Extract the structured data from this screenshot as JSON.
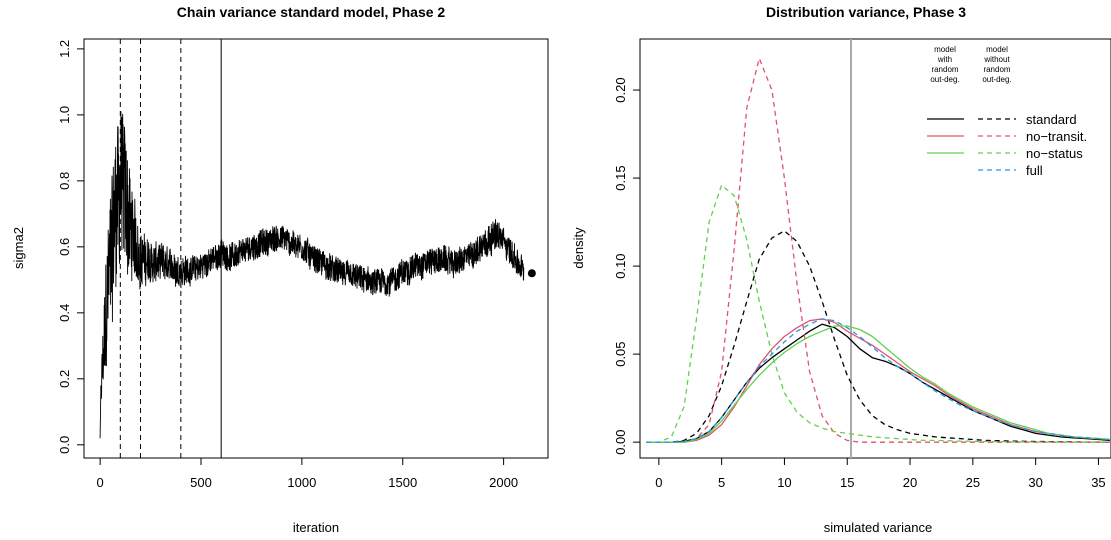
{
  "chart_data": [
    {
      "type": "line",
      "title": "Chain variance standard model, Phase 2",
      "xlabel": "iteration",
      "ylabel": "sigma2",
      "xlim": [
        -80,
        2220
      ],
      "ylim": [
        -0.04,
        1.23
      ],
      "xticks": [
        0,
        500,
        1000,
        1500,
        2000
      ],
      "yticks": [
        0.0,
        0.2,
        0.4,
        0.6,
        0.8,
        1.0,
        1.2
      ],
      "xtick_labels": [
        "0",
        "500",
        "1000",
        "1500",
        "2000"
      ],
      "ytick_labels": [
        "0.0",
        "0.2",
        "0.4",
        "0.6",
        "0.8",
        "1.0",
        "1.2"
      ],
      "vlines_dashed": [
        100,
        200,
        400
      ],
      "vlines_solid": [
        600
      ],
      "trace_anchors": {
        "x": [
          0,
          25,
          50,
          75,
          100,
          125,
          150,
          175,
          200,
          250,
          300,
          350,
          400,
          450,
          500,
          550,
          600,
          650,
          700,
          750,
          800,
          850,
          900,
          950,
          1000,
          1050,
          1100,
          1150,
          1200,
          1250,
          1300,
          1350,
          1400,
          1450,
          1500,
          1550,
          1600,
          1650,
          1700,
          1750,
          1800,
          1850,
          1900,
          1950,
          2000,
          2050,
          2100
        ],
        "center": [
          0.12,
          0.35,
          0.55,
          0.72,
          0.8,
          0.75,
          0.66,
          0.6,
          0.57,
          0.55,
          0.55,
          0.54,
          0.53,
          0.53,
          0.54,
          0.56,
          0.58,
          0.57,
          0.58,
          0.6,
          0.61,
          0.62,
          0.63,
          0.61,
          0.6,
          0.57,
          0.55,
          0.53,
          0.52,
          0.51,
          0.5,
          0.49,
          0.49,
          0.5,
          0.52,
          0.54,
          0.55,
          0.56,
          0.56,
          0.55,
          0.56,
          0.58,
          0.61,
          0.64,
          0.62,
          0.57,
          0.52
        ],
        "spread": [
          0.06,
          0.2,
          0.28,
          0.3,
          0.3,
          0.27,
          0.2,
          0.14,
          0.1,
          0.08,
          0.07,
          0.06,
          0.06,
          0.05,
          0.05,
          0.05,
          0.05,
          0.05,
          0.05,
          0.05,
          0.05,
          0.05,
          0.05,
          0.05,
          0.05,
          0.05,
          0.05,
          0.05,
          0.05,
          0.05,
          0.05,
          0.05,
          0.05,
          0.05,
          0.05,
          0.05,
          0.05,
          0.05,
          0.05,
          0.05,
          0.05,
          0.05,
          0.06,
          0.06,
          0.05,
          0.05,
          0.05
        ]
      },
      "final_point": {
        "x": 2140,
        "y": 0.52
      }
    },
    {
      "type": "line",
      "title": "Distribution variance, Phase 3",
      "xlabel": "simulated variance",
      "ylabel": "density",
      "xlim": [
        -1.5,
        36
      ],
      "ylim": [
        -0.009,
        0.229
      ],
      "xticks": [
        0,
        5,
        10,
        15,
        20,
        25,
        30,
        35
      ],
      "yticks": [
        0.0,
        0.05,
        0.1,
        0.15,
        0.2
      ],
      "xtick_labels": [
        "0",
        "5",
        "10",
        "15",
        "20",
        "25",
        "30",
        "35"
      ],
      "ytick_labels": [
        "0.00",
        "0.05",
        "0.10",
        "0.15",
        "0.20"
      ],
      "reference_line": {
        "x": 15.3,
        "color": "#aaaaaa"
      },
      "legend": {
        "position": "top-right",
        "col1_header": [
          "model",
          "with",
          "random",
          "out-deg."
        ],
        "col2_header": [
          "model",
          "without",
          "random",
          "out-deg."
        ],
        "entries": [
          "standard",
          "no−transit.",
          "no−status",
          "full"
        ]
      },
      "x": [
        -1,
        0,
        1,
        2,
        3,
        4,
        5,
        6,
        7,
        8,
        9,
        10,
        11,
        12,
        13,
        14,
        15,
        16,
        17,
        18,
        19,
        20,
        21,
        22,
        23,
        24,
        25,
        26,
        27,
        28,
        29,
        30,
        31,
        32,
        33,
        34,
        35,
        36
      ],
      "series": [
        {
          "name": "standard",
          "style": "solid",
          "color": "#000000",
          "values": [
            0,
            0,
            0,
            0.0005,
            0.002,
            0.006,
            0.014,
            0.024,
            0.034,
            0.042,
            0.048,
            0.053,
            0.058,
            0.063,
            0.067,
            0.065,
            0.06,
            0.053,
            0.048,
            0.046,
            0.043,
            0.039,
            0.034,
            0.03,
            0.026,
            0.022,
            0.018,
            0.015,
            0.012,
            0.009,
            0.007,
            0.005,
            0.004,
            0.003,
            0.0025,
            0.002,
            0.0015,
            0.001
          ]
        },
        {
          "name": "standard",
          "style": "dashed",
          "color": "#000000",
          "values": [
            0,
            0,
            0,
            0.001,
            0.005,
            0.015,
            0.032,
            0.055,
            0.08,
            0.104,
            0.116,
            0.12,
            0.114,
            0.1,
            0.08,
            0.058,
            0.038,
            0.024,
            0.015,
            0.01,
            0.007,
            0.005,
            0.004,
            0.003,
            0.0025,
            0.002,
            0.0015,
            0.001,
            0.0008,
            0.0006,
            0.0005,
            0.0004,
            0.0003,
            0.0002,
            0.0002,
            0.0001,
            0.0001,
            0
          ]
        },
        {
          "name": "no−transit.",
          "style": "solid",
          "color": "#df536b",
          "values": [
            0,
            0,
            0,
            0,
            0.001,
            0.004,
            0.01,
            0.02,
            0.032,
            0.044,
            0.053,
            0.06,
            0.065,
            0.069,
            0.07,
            0.068,
            0.063,
            0.059,
            0.055,
            0.05,
            0.045,
            0.04,
            0.036,
            0.032,
            0.027,
            0.023,
            0.019,
            0.016,
            0.013,
            0.01,
            0.008,
            0.006,
            0.005,
            0.004,
            0.003,
            0.0025,
            0.002,
            0.0015
          ]
        },
        {
          "name": "no−transit.",
          "style": "dashed",
          "color": "#df536b",
          "values": [
            0,
            0,
            0,
            0,
            0.002,
            0.01,
            0.04,
            0.11,
            0.19,
            0.218,
            0.2,
            0.15,
            0.09,
            0.04,
            0.015,
            0.005,
            0.001,
            0,
            0,
            0,
            0,
            0,
            0,
            0,
            0,
            0,
            0,
            0,
            0,
            0,
            0,
            0,
            0,
            0,
            0,
            0,
            0,
            0
          ]
        },
        {
          "name": "no−status",
          "style": "solid",
          "color": "#61d04f",
          "values": [
            0,
            0,
            0,
            0,
            0.0015,
            0.005,
            0.012,
            0.021,
            0.03,
            0.038,
            0.045,
            0.051,
            0.056,
            0.06,
            0.063,
            0.066,
            0.066,
            0.064,
            0.06,
            0.054,
            0.048,
            0.042,
            0.037,
            0.033,
            0.028,
            0.024,
            0.02,
            0.017,
            0.014,
            0.011,
            0.009,
            0.007,
            0.005,
            0.004,
            0.003,
            0.0025,
            0.002,
            0.0015
          ]
        },
        {
          "name": "no−status",
          "style": "dashed",
          "color": "#61d04f",
          "values": [
            0,
            0,
            0.003,
            0.02,
            0.07,
            0.125,
            0.146,
            0.14,
            0.115,
            0.08,
            0.05,
            0.028,
            0.017,
            0.011,
            0.008,
            0.006,
            0.005,
            0.004,
            0.003,
            0.0025,
            0.002,
            0.0015,
            0.001,
            0.001,
            0.0008,
            0.0006,
            0.0005,
            0.0004,
            0.0003,
            0.0002,
            0.0002,
            0.0001,
            0.0001,
            0,
            0,
            0,
            0,
            0
          ]
        },
        {
          "name": "full",
          "style": "dashed",
          "color": "#2297e6",
          "values": [
            0,
            0,
            0,
            0.0005,
            0.002,
            0.006,
            0.014,
            0.024,
            0.034,
            0.043,
            0.05,
            0.057,
            0.063,
            0.067,
            0.07,
            0.069,
            0.065,
            0.06,
            0.054,
            0.048,
            0.043,
            0.039,
            0.034,
            0.029,
            0.025,
            0.021,
            0.018,
            0.015,
            0.012,
            0.01,
            0.008,
            0.006,
            0.005,
            0.004,
            0.003,
            0.0025,
            0.002,
            0.0015
          ]
        }
      ]
    }
  ]
}
